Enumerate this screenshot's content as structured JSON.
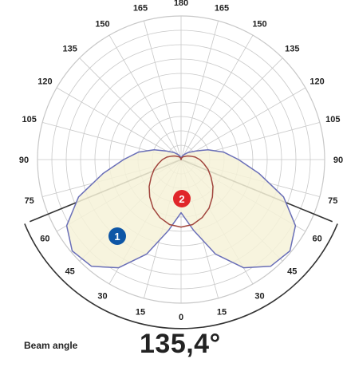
{
  "chart_data": {
    "type": "polar",
    "title": "",
    "angle_unit": "deg",
    "angle_ticks_left": [
      0,
      15,
      30,
      45,
      60,
      75,
      90,
      105,
      120,
      135,
      150,
      165,
      180
    ],
    "angle_ticks_right": [
      15,
      30,
      45,
      60,
      75,
      90,
      105,
      120,
      135,
      150,
      165
    ],
    "grid": true,
    "series": [
      {
        "marker": "1",
        "color": "#6a6fb8",
        "fill": "#f6f2d8",
        "angles": [
          0,
          10,
          20,
          30,
          40,
          50,
          60,
          70,
          80,
          90,
          100,
          110,
          120,
          135,
          150,
          165,
          180
        ],
        "r": [
          0.37,
          0.5,
          0.7,
          0.87,
          0.97,
          0.99,
          0.92,
          0.76,
          0.55,
          0.4,
          0.3,
          0.2,
          0.12,
          0.07,
          0.04,
          0.02,
          0.0
        ]
      },
      {
        "marker": "2",
        "color": "#a0443c",
        "fill": "none",
        "angles": [
          0,
          10,
          20,
          30,
          40,
          50,
          60,
          70,
          80,
          90,
          100,
          110,
          120,
          135,
          150,
          165,
          180
        ],
        "r": [
          0.47,
          0.46,
          0.43,
          0.39,
          0.34,
          0.29,
          0.24,
          0.2,
          0.16,
          0.13,
          0.1,
          0.07,
          0.05,
          0.03,
          0.02,
          0.01,
          0.0
        ]
      }
    ],
    "beam_limits_deg": [
      -67.7,
      67.7
    ]
  },
  "beam": {
    "label": "Beam angle",
    "value": "135,4°"
  },
  "colors": {
    "grid": "#c8c8c8",
    "axis": "#333333",
    "marker1": "#0e56a6",
    "marker2": "#e0262a"
  }
}
